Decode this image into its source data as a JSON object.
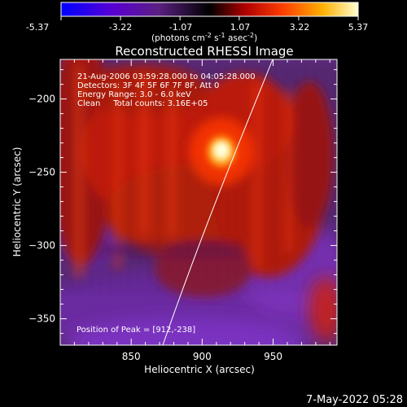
{
  "colorbar": {
    "ticks": [
      "-5.37",
      "-3.22",
      "-1.07",
      "1.07",
      "3.22",
      "5.37"
    ],
    "unit_main": "(photons cm",
    "unit_exp1": "-2",
    "unit_mid": " s",
    "unit_exp2": "-1",
    "unit_post": " asec",
    "unit_exp3": "-2",
    "unit_close": ")",
    "range": [
      -5.37,
      5.37
    ]
  },
  "chart_data": {
    "type": "heatmap",
    "title": "Reconstructed RHESSI Image",
    "xlabel": "Heliocentric X (arcsec)",
    "ylabel": "Heliocentric Y (arcsec)",
    "xlim": [
      800,
      995
    ],
    "ylim": [
      -368,
      -173
    ],
    "xticks": [
      850,
      900,
      950
    ],
    "yticks": [
      -200,
      -250,
      -300,
      -350
    ],
    "colorscale": [
      "#0000ff",
      "#5a00d0",
      "#3a2060",
      "#000000",
      "#b00000",
      "#ff4000",
      "#ffb000",
      "#ffffd0"
    ],
    "info_lines": [
      "21-Aug-2006 03:59:28.000 to 04:05:28.000",
      "Detectors: 3F 4F 5F 6F 7F 8F, Att 0",
      "Energy Range: 3.0 - 6.0 keV",
      "Clean     Total counts: 3.16E+05"
    ],
    "peak_label": "Position of Peak = [912,-238]",
    "peak": [
      912,
      -238
    ]
  },
  "footer": {
    "timestamp": "7-May-2022 05:28"
  }
}
